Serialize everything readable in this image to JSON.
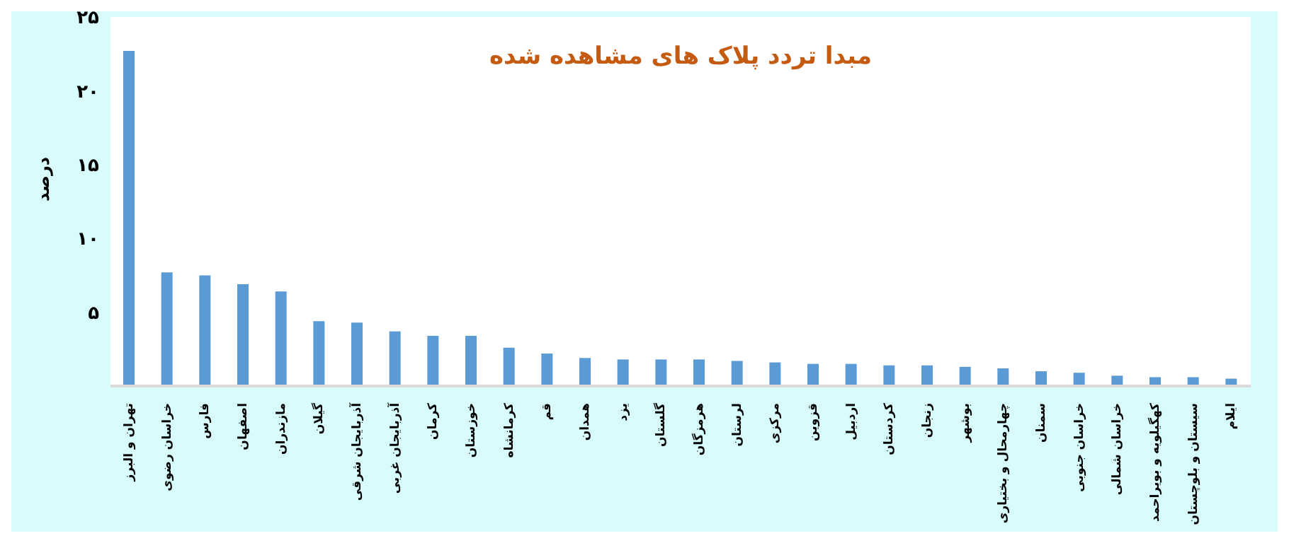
{
  "chart_data": {
    "type": "bar",
    "title": "مبدا تردد پلاک های مشاهده شده",
    "ylabel": "درصد",
    "categories": [
      "تهران و البرز",
      "خراسان رضوی",
      "فارس",
      "اصفهان",
      "مازندران",
      "گیلان",
      "آذربایجان شرقی",
      "آذربایجان غربی",
      "کرمان",
      "خوزستان",
      "کرمانشاه",
      "قم",
      "همدان",
      "یزد",
      "گلستان",
      "هرمزگان",
      "لرستان",
      "مرکزی",
      "قزوین",
      "اردبیل",
      "کردستان",
      "زنجان",
      "بوشهر",
      "چهارمحال و بختیاری",
      "سمنان",
      "خراسان جنوبی",
      "خراسان شمالی",
      "کهگیلویه و بویراحمد",
      "سیستان و بلوچستان",
      "ایلام"
    ],
    "values": [
      22.7,
      7.7,
      7.5,
      6.9,
      6.4,
      4.4,
      4.3,
      3.7,
      3.4,
      3.4,
      2.6,
      2.2,
      1.9,
      1.8,
      1.8,
      1.8,
      1.7,
      1.6,
      1.5,
      1.5,
      1.4,
      1.4,
      1.3,
      1.2,
      1.0,
      0.9,
      0.7,
      0.6,
      0.6,
      0.5
    ],
    "color": "#5b9bd5",
    "ylim": [
      0,
      25
    ],
    "yticks": [
      {
        "value": 5,
        "label": "۵"
      },
      {
        "value": 10,
        "label": "۱۰"
      },
      {
        "value": 15,
        "label": "۱۵"
      },
      {
        "value": 20,
        "label": "۲۰"
      },
      {
        "value": 25,
        "label": "۲۵"
      }
    ],
    "tick_labels": true
  }
}
